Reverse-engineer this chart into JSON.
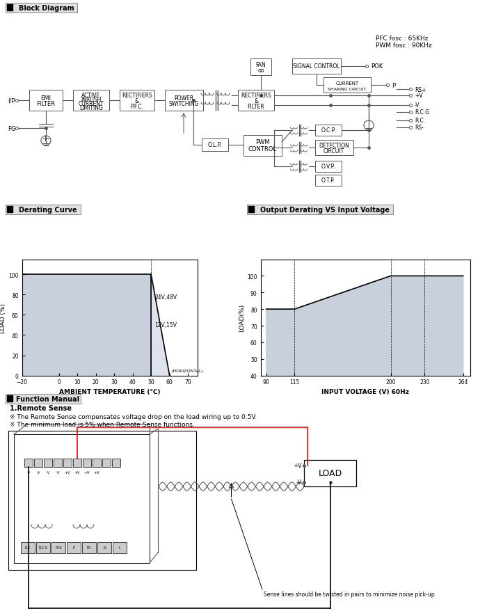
{
  "bg_color": "#ffffff",
  "pfc_text_line1": "PFC fosc : 65KHz",
  "pfc_text_line2": "PWM fosc : 90KHz",
  "derating_curve": {
    "xlabel": "AMBIENT TEMPERATURE (℃)",
    "ylabel": "LOAD (%)",
    "xlim": [
      -20,
      75
    ],
    "ylim": [
      0,
      110
    ],
    "xticks": [
      -20,
      0,
      10,
      20,
      30,
      40,
      50,
      60,
      70
    ],
    "yticks": [
      0,
      20,
      40,
      60,
      80,
      100
    ],
    "fill_color": "#c8d0de",
    "fill_color2": "#dde2ec",
    "label_24_48": "24V,48V",
    "label_12_15": "12V,15V",
    "horizontal_label": "70  (HORIZONTAL)"
  },
  "output_derating": {
    "xlabel": "INPUT VOLTAGE (V) 60Hz",
    "ylabel": "LOAD(%)",
    "xlim": [
      85,
      270
    ],
    "ylim": [
      40,
      110
    ],
    "xticks": [
      90,
      115,
      200,
      230,
      264
    ],
    "yticks": [
      40,
      50,
      60,
      70,
      80,
      90,
      100
    ],
    "fill_color": "#c8d0de",
    "points_x": [
      90,
      115,
      200,
      230,
      264
    ],
    "points_y": [
      80,
      80,
      100,
      100,
      100
    ]
  },
  "remote_sense_text1": "※ The Remote Sense compensates voltage drop on the load wiring up to 0.5V.",
  "remote_sense_text2": "※ The minimum load is 5% when Remote Sense functions.",
  "sense_note": "Sense lines should be twisted in pairs to minimize noise pick-up."
}
